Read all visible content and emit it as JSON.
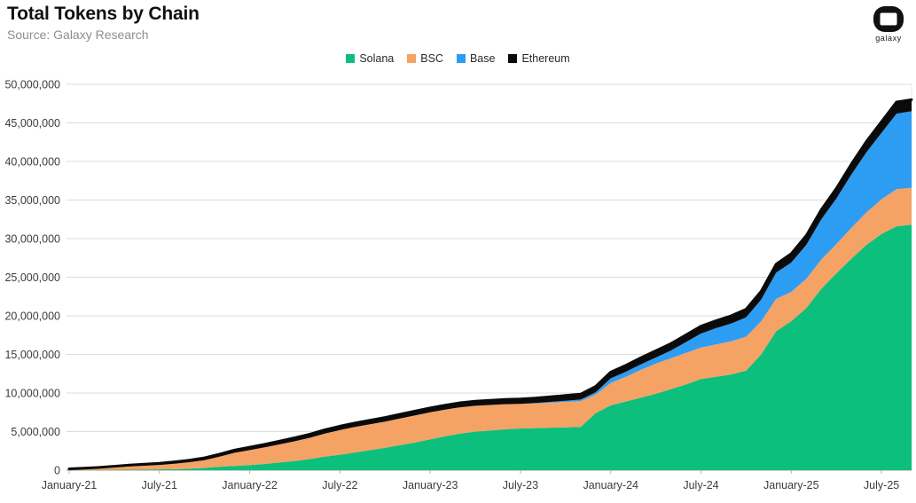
{
  "header": {
    "title": "Total Tokens by Chain",
    "source": "Source: Galaxy Research"
  },
  "logo": {
    "wordmark": "galaxy"
  },
  "colors": {
    "solana": "#0DBF7D",
    "bsc": "#F5A265",
    "base": "#2D9CF3",
    "ethereum": "#0B0B0B",
    "gridline": "#DCDCDC",
    "axis_line": "#9E9E9E",
    "axis_text": "#3C3C3C"
  },
  "chart_data": {
    "type": "area",
    "stacked": true,
    "title": "Total Tokens by Chain",
    "subtitle": "Source: Galaxy Research",
    "xlabel": "",
    "ylabel": "",
    "unit": "tokens",
    "x_frequency": "monthly",
    "x_start": "January-21",
    "x_end": "September-25",
    "x_tick_labels": [
      "January-21",
      "July-21",
      "January-22",
      "July-22",
      "January-23",
      "July-23",
      "January-24",
      "July-24",
      "January-25",
      "July-25"
    ],
    "x_tick_every_n_months": 6,
    "ylim": [
      0,
      50000000
    ],
    "y_tick_step": 5000000,
    "y_max_millions": 50,
    "grid": "horizontal",
    "legend_position": "top-center",
    "series": [
      {
        "name": "Solana",
        "color": "#0DBF7D",
        "values_millions": [
          0.02,
          0.03,
          0.04,
          0.05,
          0.06,
          0.08,
          0.1,
          0.13,
          0.18,
          0.3,
          0.45,
          0.55,
          0.65,
          0.8,
          1.0,
          1.2,
          1.45,
          1.75,
          2.0,
          2.3,
          2.6,
          2.9,
          3.25,
          3.6,
          4.0,
          4.4,
          4.75,
          5.0,
          5.15,
          5.3,
          5.4,
          5.45,
          5.5,
          5.55,
          5.6,
          7.4,
          8.4,
          8.9,
          9.4,
          9.9,
          10.5,
          11.1,
          11.8,
          12.1,
          12.4,
          12.9,
          15.0,
          18.0,
          19.3,
          21.0,
          23.5,
          25.5,
          27.4,
          29.2,
          30.6,
          31.6,
          31.8
        ]
      },
      {
        "name": "BSC",
        "color": "#F5A265",
        "values_millions": [
          0.1,
          0.15,
          0.22,
          0.32,
          0.42,
          0.5,
          0.58,
          0.7,
          0.85,
          1.0,
          1.3,
          1.7,
          1.95,
          2.15,
          2.35,
          2.55,
          2.75,
          3.0,
          3.2,
          3.3,
          3.35,
          3.4,
          3.45,
          3.5,
          3.5,
          3.45,
          3.4,
          3.35,
          3.3,
          3.25,
          3.2,
          3.2,
          3.25,
          3.3,
          3.35,
          2.4,
          2.9,
          3.2,
          3.6,
          3.9,
          4.0,
          4.1,
          4.1,
          4.2,
          4.3,
          4.4,
          4.3,
          4.2,
          3.8,
          3.8,
          3.8,
          3.8,
          4.0,
          4.2,
          4.5,
          4.8,
          4.8
        ]
      },
      {
        "name": "Base",
        "color": "#2D9CF3",
        "values_millions": [
          0,
          0,
          0,
          0,
          0,
          0,
          0,
          0,
          0,
          0,
          0,
          0,
          0,
          0,
          0,
          0,
          0,
          0,
          0,
          0,
          0,
          0,
          0,
          0,
          0,
          0,
          0,
          0,
          0,
          0,
          0,
          0.05,
          0.1,
          0.15,
          0.2,
          0.3,
          0.6,
          0.65,
          0.7,
          0.8,
          1.0,
          1.4,
          1.8,
          2.1,
          2.3,
          2.5,
          2.8,
          3.4,
          3.8,
          4.4,
          5.2,
          5.9,
          6.9,
          7.8,
          8.6,
          9.8,
          9.9
        ]
      },
      {
        "name": "Ethereum",
        "color": "#0B0B0B",
        "values_millions": [
          0.05,
          0.07,
          0.1,
          0.13,
          0.17,
          0.2,
          0.22,
          0.25,
          0.27,
          0.3,
          0.33,
          0.36,
          0.38,
          0.4,
          0.42,
          0.44,
          0.46,
          0.48,
          0.5,
          0.51,
          0.52,
          0.53,
          0.54,
          0.55,
          0.56,
          0.57,
          0.58,
          0.59,
          0.6,
          0.61,
          0.62,
          0.64,
          0.66,
          0.68,
          0.7,
          0.75,
          0.8,
          0.82,
          0.85,
          0.88,
          0.9,
          0.92,
          0.95,
          0.97,
          1.0,
          1.05,
          1.08,
          1.1,
          1.15,
          1.2,
          1.25,
          1.3,
          1.35,
          1.4,
          1.45,
          1.5,
          1.5
        ]
      }
    ]
  }
}
